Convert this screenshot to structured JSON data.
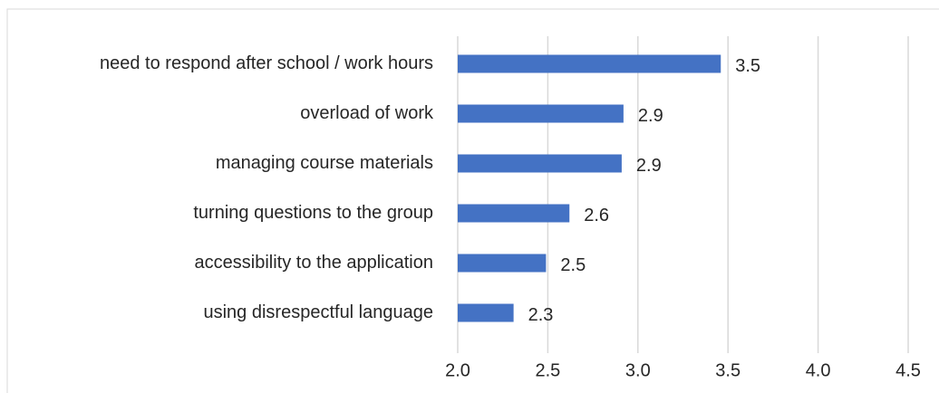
{
  "chart_data": {
    "type": "barh",
    "categories": [
      "need to respond after school / work hours",
      "overload of work",
      "managing course materials",
      "turning questions to the group",
      "accessibility to the application",
      "using disrespectful language"
    ],
    "values": [
      3.46,
      2.92,
      2.91,
      2.62,
      2.49,
      2.31
    ],
    "value_labels": [
      "3.5",
      "2.9",
      "2.9",
      "2.6",
      "2.5",
      "2.3"
    ],
    "color": "#4472c4",
    "xlim": [
      2,
      4.5
    ],
    "xticks": [
      {
        "value": 2,
        "label": "2.0"
      },
      2.5,
      {
        "value": 3,
        "label": "3.0"
      },
      3.5,
      {
        "value": 4,
        "label": "4.0"
      },
      4.5
    ],
    "grid": true
  }
}
